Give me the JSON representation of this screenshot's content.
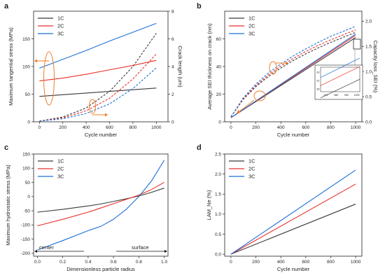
{
  "colors": {
    "c1": "#3a3a3a",
    "c2": "#e8302a",
    "c3": "#1f6fd6",
    "arrow": "#f07d2a"
  },
  "chart_data": [
    {
      "id": "a",
      "letter": "a",
      "type": "line",
      "xlabel": "Cycle number",
      "ylabel": "Maximum tangential stress (MPa)",
      "y2label": "Crack length (um)",
      "xlim": [
        -50,
        1100
      ],
      "ylim": [
        0,
        200
      ],
      "y2lim": [
        0,
        8
      ],
      "xticks": [
        0,
        200,
        400,
        600,
        800,
        1000
      ],
      "yticks": [
        0,
        50,
        100,
        150
      ],
      "y2ticks": [
        0,
        2,
        4,
        6,
        8
      ],
      "legend": [
        "1C",
        "2C",
        "3C"
      ],
      "legend_position": "top-left",
      "series": [
        {
          "name": "1C",
          "color_key": "c1",
          "axis": "left",
          "dashed": false,
          "x": [
            0,
            200,
            400,
            600,
            800,
            1000
          ],
          "y": [
            46,
            49,
            52,
            55,
            58,
            61
          ]
        },
        {
          "name": "2C",
          "color_key": "c2",
          "axis": "left",
          "dashed": false,
          "x": [
            0,
            200,
            400,
            600,
            800,
            1000
          ],
          "y": [
            74,
            79,
            86,
            94,
            102,
            111
          ]
        },
        {
          "name": "3C",
          "color_key": "c3",
          "axis": "left",
          "dashed": false,
          "x": [
            0,
            200,
            400,
            600,
            800,
            1000
          ],
          "y": [
            97,
            113,
            129,
            146,
            162,
            178
          ]
        },
        {
          "name": "1C",
          "color_key": "c1",
          "axis": "right",
          "dashed": true,
          "x": [
            0,
            200,
            400,
            600,
            800,
            1000
          ],
          "y": [
            0.05,
            0.35,
            1.0,
            2.2,
            4.0,
            6.4
          ]
        },
        {
          "name": "2C",
          "color_key": "c2",
          "axis": "right",
          "dashed": true,
          "x": [
            0,
            200,
            400,
            600,
            800,
            1000
          ],
          "y": [
            0.05,
            0.28,
            0.8,
            1.7,
            3.1,
            4.9
          ]
        },
        {
          "name": "3C",
          "color_key": "c3",
          "axis": "right",
          "dashed": true,
          "x": [
            0,
            200,
            400,
            600,
            800,
            1000
          ],
          "y": [
            0.05,
            0.22,
            0.6,
            1.3,
            2.4,
            3.9
          ]
        }
      ]
    },
    {
      "id": "b",
      "letter": "b",
      "type": "line",
      "xlabel": "Cycle number",
      "ylabel": "Average SEI thickness on crack (nm)",
      "y2label": "Capacity loss_SEI (%)",
      "xlim": [
        -50,
        1050
      ],
      "ylim": [
        0,
        80
      ],
      "y2lim": [
        0,
        2.2
      ],
      "xticks": [
        0,
        200,
        400,
        600,
        800,
        1000
      ],
      "yticks": [
        0,
        20,
        40,
        60
      ],
      "y2ticks": [
        0.0,
        0.5,
        1.0,
        1.5,
        2.0
      ],
      "legend": [
        "1C",
        "2C",
        "3C"
      ],
      "legend_position": "top-left",
      "series": [
        {
          "name": "1C",
          "color_key": "c1",
          "axis": "left",
          "dashed": false,
          "x": [
            0,
            1000
          ],
          "y": [
            3,
            61
          ]
        },
        {
          "name": "2C",
          "color_key": "c2",
          "axis": "left",
          "dashed": false,
          "x": [
            0,
            1000
          ],
          "y": [
            3,
            62.5
          ]
        },
        {
          "name": "3C",
          "color_key": "c3",
          "axis": "left",
          "dashed": false,
          "x": [
            0,
            1000
          ],
          "y": [
            3,
            63.5
          ]
        },
        {
          "name": "1C",
          "color_key": "c1",
          "axis": "right",
          "dashed": true,
          "x": [
            0,
            100,
            200,
            300,
            400,
            500,
            600,
            700,
            800,
            900,
            1000
          ],
          "y": [
            0.1,
            0.45,
            0.7,
            0.9,
            1.07,
            1.22,
            1.35,
            1.47,
            1.58,
            1.68,
            1.78
          ]
        },
        {
          "name": "2C",
          "color_key": "c2",
          "axis": "right",
          "dashed": true,
          "x": [
            0,
            100,
            200,
            300,
            400,
            500,
            600,
            700,
            800,
            900,
            1000
          ],
          "y": [
            0.1,
            0.46,
            0.72,
            0.93,
            1.11,
            1.26,
            1.4,
            1.52,
            1.63,
            1.73,
            1.83
          ]
        },
        {
          "name": "3C",
          "color_key": "c3",
          "axis": "right",
          "dashed": true,
          "x": [
            0,
            100,
            200,
            300,
            400,
            500,
            600,
            700,
            800,
            900,
            1000
          ],
          "y": [
            0.1,
            0.48,
            0.75,
            0.97,
            1.15,
            1.31,
            1.45,
            1.58,
            1.7,
            1.8,
            1.9
          ]
        }
      ],
      "inset": {
        "xticks": [
          970,
          980,
          990,
          1000
        ],
        "yticks": [
          60,
          61,
          62
        ],
        "xlim": [
          965,
          1003
        ],
        "ylim": [
          59.7,
          62.6
        ]
      }
    },
    {
      "id": "c",
      "letter": "c",
      "type": "line",
      "xlabel": "Dimensionless particle radius",
      "ylabel": "Maximum hydrostatic stress (MPa)",
      "xlim": [
        -0.03,
        1.03
      ],
      "ylim": [
        -210,
        150
      ],
      "xticks": [
        0.0,
        0.2,
        0.4,
        0.6,
        0.8,
        1.0
      ],
      "yticks": [
        -200,
        -150,
        -100,
        -50,
        0,
        50,
        100,
        150
      ],
      "legend": [
        "1C",
        "2C",
        "3C"
      ],
      "legend_position": "top-left",
      "annotations": {
        "left": "center",
        "right": "surface"
      },
      "series": [
        {
          "name": "1C",
          "color_key": "c1",
          "x": [
            0,
            0.2,
            0.4,
            0.5,
            0.6,
            0.7,
            0.8,
            0.9,
            1.0
          ],
          "y": [
            -55,
            -45,
            -33,
            -26,
            -17,
            -8,
            2,
            15,
            30
          ]
        },
        {
          "name": "2C",
          "color_key": "c2",
          "x": [
            0,
            0.2,
            0.4,
            0.5,
            0.6,
            0.7,
            0.8,
            0.9,
            1.0
          ],
          "y": [
            -103,
            -80,
            -55,
            -40,
            -25,
            -10,
            5,
            25,
            50
          ]
        },
        {
          "name": "3C",
          "color_key": "c3",
          "x": [
            0,
            0.2,
            0.4,
            0.5,
            0.6,
            0.7,
            0.8,
            0.9,
            1.0
          ],
          "y": [
            -188,
            -155,
            -120,
            -105,
            -80,
            -45,
            0,
            55,
            128
          ]
        }
      ]
    },
    {
      "id": "d",
      "letter": "d",
      "type": "line",
      "xlabel": "Cycle number",
      "ylabel": "LAM_Ne (%)",
      "xlim": [
        -50,
        1050
      ],
      "ylim": [
        -0.05,
        2.5
      ],
      "xticks": [
        0,
        200,
        400,
        600,
        800,
        1000
      ],
      "yticks": [
        0.0,
        0.5,
        1.0,
        1.5,
        2.0,
        2.5
      ],
      "legend": [
        "1C",
        "2C",
        "3C"
      ],
      "legend_position": "top-left",
      "series": [
        {
          "name": "1C",
          "color_key": "c1",
          "x": [
            0,
            1000
          ],
          "y": [
            0,
            1.25
          ]
        },
        {
          "name": "2C",
          "color_key": "c2",
          "x": [
            0,
            1000
          ],
          "y": [
            0,
            1.75
          ]
        },
        {
          "name": "3C",
          "color_key": "c3",
          "x": [
            0,
            1000
          ],
          "y": [
            0,
            2.1
          ]
        }
      ]
    }
  ]
}
